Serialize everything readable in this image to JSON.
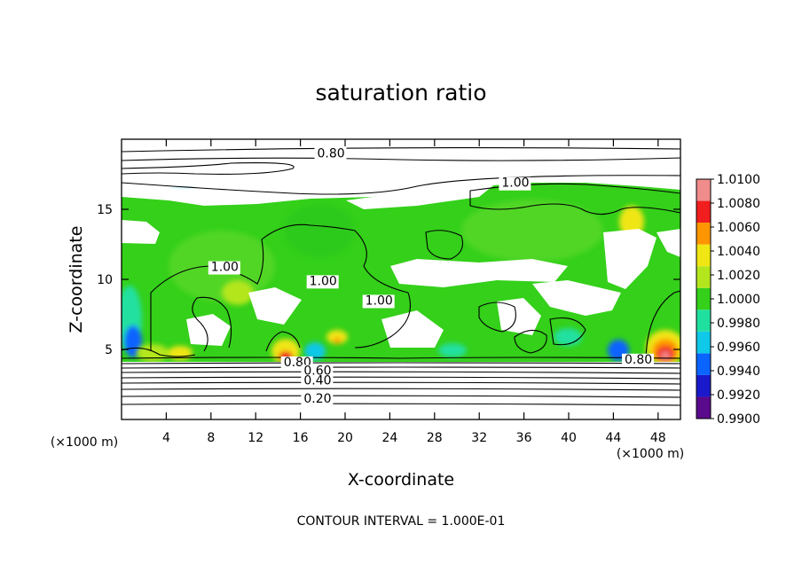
{
  "chart_data": {
    "type": "heatmap",
    "title": "saturation ratio",
    "xlabel": "X-coordinate",
    "ylabel": "Z-coordinate",
    "x_unit": "(×1000 m)",
    "y_unit": "(×1000 m)",
    "xlim": [
      0,
      50
    ],
    "ylim": [
      0,
      20
    ],
    "x_ticks": [
      4,
      8,
      12,
      16,
      20,
      24,
      28,
      32,
      36,
      40,
      44,
      48
    ],
    "x_tick_labels": [
      "4",
      "8",
      "12",
      "16",
      "20",
      "24",
      "28",
      "32",
      "36",
      "40",
      "44",
      "48"
    ],
    "y_ticks": [
      5,
      10,
      15
    ],
    "y_tick_labels": [
      "5",
      "10",
      "15"
    ],
    "colorbar": {
      "levels": [
        0.99,
        0.992,
        0.994,
        0.996,
        0.998,
        1.0,
        1.002,
        1.004,
        1.006,
        1.008,
        1.01
      ],
      "labels": [
        "0.9900",
        "0.9920",
        "0.9940",
        "0.9960",
        "0.9980",
        "1.0000",
        "1.0020",
        "1.0040",
        "1.0060",
        "1.0080",
        "1.0100"
      ],
      "colors": [
        "#5a0a8c",
        "#1a1acc",
        "#0a64ff",
        "#10c8e8",
        "#20e0a0",
        "#34d01a",
        "#b4e61e",
        "#f0e614",
        "#ff9600",
        "#f01e1e",
        "#f08c8c"
      ]
    },
    "contour_labels": [
      {
        "text": "0.80",
        "x": 17.5,
        "z": 18.7
      },
      {
        "text": "1.00",
        "x": 34.0,
        "z": 16.6
      },
      {
        "text": "1.00",
        "x": 8.0,
        "z": 10.6
      },
      {
        "text": "1.00",
        "x": 16.8,
        "z": 9.6
      },
      {
        "text": "1.00",
        "x": 21.8,
        "z": 8.2
      },
      {
        "text": "0.80",
        "x": 14.5,
        "z": 3.8
      },
      {
        "text": "0.60",
        "x": 16.3,
        "z": 3.2
      },
      {
        "text": "0.40",
        "x": 16.3,
        "z": 2.5
      },
      {
        "text": "0.20",
        "x": 16.3,
        "z": 1.2
      },
      {
        "text": "0.80",
        "x": 45.0,
        "z": 4.0
      }
    ],
    "footnote": "CONTOUR INTERVAL = 1.000E-01"
  }
}
